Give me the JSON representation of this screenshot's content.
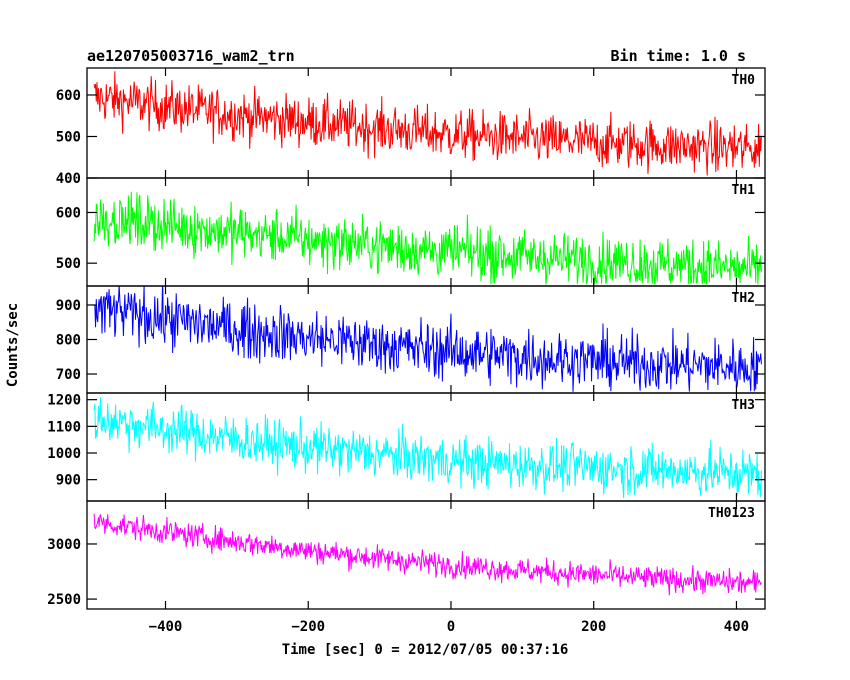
{
  "title_left": "ae120705003716_wam2_trn",
  "title_right": "Bin time: 1.0 s",
  "xlabel": "Time [sec] 0 = 2012/07/05 00:37:16",
  "ylabel": "Counts/sec",
  "chart_data": {
    "type": "line",
    "bin_time_s": 1.0,
    "xlim": [
      -510,
      440
    ],
    "x_range": [
      -500,
      435
    ],
    "x_ticks": [
      -400,
      -200,
      0,
      200,
      400
    ],
    "grid": false,
    "panels": [
      {
        "name": "TH0",
        "color": "#ff0000",
        "ylim": [
          400,
          665
        ],
        "y_ticks": [
          400,
          500,
          600
        ],
        "y_tick_labels": [
          "400",
          "500",
          "600"
        ],
        "trend": {
          "x": [
            -500,
            -400,
            -300,
            -200,
            -100,
            0,
            100,
            200,
            300,
            435
          ],
          "y": [
            595,
            572,
            552,
            535,
            520,
            505,
            495,
            486,
            478,
            470
          ]
        },
        "noise_amplitude": 30,
        "min_value": 405
      },
      {
        "name": "TH1",
        "color": "#00ff00",
        "ylim": [
          455,
          668
        ],
        "y_ticks": [
          500,
          600
        ],
        "y_tick_labels": [
          "500",
          "600"
        ],
        "trend": {
          "x": [
            -500,
            -400,
            -300,
            -200,
            -100,
            0,
            100,
            200,
            300,
            435
          ],
          "y": [
            590,
            575,
            560,
            546,
            534,
            522,
            513,
            505,
            497,
            488
          ]
        },
        "noise_amplitude": 26,
        "min_value": 458
      },
      {
        "name": "TH2",
        "color": "#0000ff",
        "ylim": [
          645,
          955
        ],
        "y_ticks": [
          700,
          800,
          900
        ],
        "y_tick_labels": [
          "700",
          "800",
          "900"
        ],
        "trend": {
          "x": [
            -500,
            -400,
            -300,
            -200,
            -100,
            0,
            100,
            200,
            300,
            435
          ],
          "y": [
            890,
            860,
            830,
            805,
            785,
            765,
            750,
            738,
            728,
            718
          ]
        },
        "noise_amplitude": 40,
        "min_value": 648
      },
      {
        "name": "TH3",
        "color": "#00ffff",
        "ylim": [
          820,
          1225
        ],
        "y_ticks": [
          900,
          1000,
          1100,
          1200
        ],
        "y_tick_labels": [
          "900",
          "1000",
          "1100",
          "1200"
        ],
        "trend": {
          "x": [
            -500,
            -400,
            -300,
            -200,
            -100,
            0,
            100,
            200,
            300,
            435
          ],
          "y": [
            1130,
            1090,
            1050,
            1020,
            995,
            970,
            955,
            945,
            935,
            920
          ]
        },
        "noise_amplitude": 45,
        "min_value": 828
      },
      {
        "name": "TH0123",
        "color": "#ff00ff",
        "ylim": [
          2410,
          3390
        ],
        "y_ticks": [
          2500,
          3000
        ],
        "y_tick_labels": [
          "2500",
          "3000"
        ],
        "trend": {
          "x": [
            -500,
            -400,
            -300,
            -200,
            -100,
            0,
            100,
            200,
            300,
            435
          ],
          "y": [
            3200,
            3110,
            3020,
            2940,
            2870,
            2810,
            2760,
            2720,
            2680,
            2640
          ]
        },
        "noise_amplitude": 55,
        "min_value": 2420
      }
    ]
  }
}
